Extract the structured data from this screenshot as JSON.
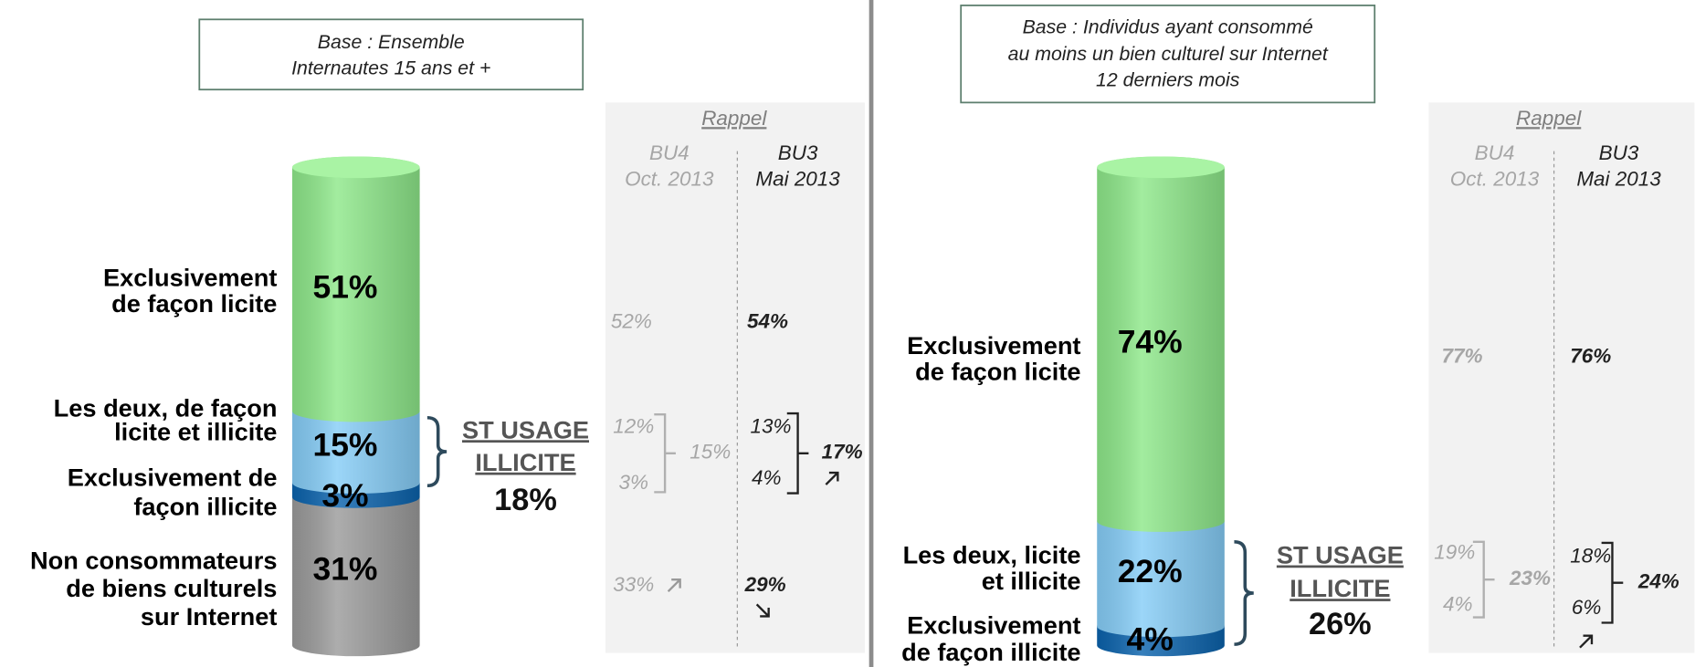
{
  "chart_data": [
    {
      "type": "stacked-cylinder",
      "base": [
        "Base : Ensemble",
        "Internautes 15 ans et +"
      ],
      "categories": [
        [
          "Exclusivement",
          "de façon licite"
        ],
        [
          "Les deux, de façon",
          "licite et illicite"
        ],
        [
          "Exclusivement de",
          "façon illicite"
        ],
        [
          "Non consommateurs",
          "de biens culturels",
          "sur Internet"
        ]
      ],
      "values": [
        51,
        15,
        3,
        31
      ],
      "value_labels": [
        "51%",
        "15%",
        "3%",
        "31%"
      ],
      "colors": [
        "#8ee88a",
        "#86cdf7",
        "#0b63ad",
        "#9b9b9b"
      ],
      "subtotal": {
        "label": [
          "ST USAGE",
          "ILLICITE"
        ],
        "value_label": "18%"
      },
      "rappel": {
        "title": "Rappel",
        "columns": [
          {
            "name": "BU4",
            "date": "Oct. 2013",
            "values": [
              "52%",
              "12%",
              "3%",
              "33%"
            ],
            "subtotal": "15%"
          },
          {
            "name": "BU3",
            "date": "Mai 2013",
            "values": [
              "54%",
              "13%",
              "4%",
              "29%"
            ],
            "subtotal": "17%"
          }
        ]
      }
    },
    {
      "type": "stacked-cylinder",
      "base": [
        "Base : Individus ayant consommé",
        "au moins un bien culturel sur Internet",
        "12 derniers mois"
      ],
      "categories": [
        [
          "Exclusivement",
          "de façon licite"
        ],
        [
          "Les deux, licite",
          "et illicite"
        ],
        [
          "Exclusivement",
          "de façon illicite"
        ]
      ],
      "values": [
        74,
        22,
        4
      ],
      "value_labels": [
        "74%",
        "22%",
        "4%"
      ],
      "colors": [
        "#8ee88a",
        "#86cdf7",
        "#0b63ad"
      ],
      "subtotal": {
        "label": [
          "ST USAGE",
          "ILLICITE"
        ],
        "value_label": "26%"
      },
      "rappel": {
        "title": "Rappel",
        "columns": [
          {
            "name": "BU4",
            "date": "Oct. 2013",
            "values": [
              "77%",
              "19%",
              "4%"
            ],
            "subtotal": "23%"
          },
          {
            "name": "BU3",
            "date": "Mai 2013",
            "values": [
              "76%",
              "18%",
              "6%"
            ],
            "subtotal": "24%"
          }
        ]
      }
    }
  ]
}
